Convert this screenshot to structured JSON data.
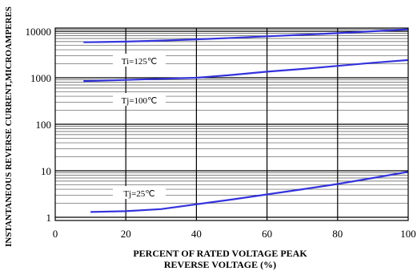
{
  "chart_data": {
    "type": "line",
    "xlabel_line1": "PERCENT OF RATED VOLTAGE PEAK",
    "xlabel_line2": "REVERSE VOLTAGE (%)",
    "ylabel": "INSTANTANEOUS REVERSE CURRENT,MICROAMPERES",
    "xlim": [
      0,
      100
    ],
    "ylim": [
      1,
      10000
    ],
    "yscale": "log",
    "grid": true,
    "x_ticks": [
      "0",
      "20",
      "40",
      "60",
      "80",
      "100"
    ],
    "y_ticks": [
      "1",
      "10",
      "100",
      "1000",
      "10000"
    ],
    "series": [
      {
        "name": "Ti=125℃",
        "color": "#3333dd",
        "x": [
          8,
          20,
          30,
          40,
          50,
          60,
          70,
          80,
          90,
          100
        ],
        "y": [
          5800,
          6000,
          6300,
          6700,
          7200,
          7800,
          8400,
          9100,
          10000,
          11000
        ]
      },
      {
        "name": "Tj=100℃",
        "color": "#3333dd",
        "x": [
          8,
          20,
          30,
          40,
          50,
          60,
          70,
          80,
          90,
          100
        ],
        "y": [
          850,
          900,
          950,
          1000,
          1150,
          1350,
          1550,
          1800,
          2100,
          2400
        ]
      },
      {
        "name": "Tj=25℃",
        "color": "#3333dd",
        "x": [
          10,
          20,
          30,
          40,
          50,
          60,
          70,
          80,
          90,
          100
        ],
        "y": [
          1.3,
          1.35,
          1.5,
          1.9,
          2.4,
          3.1,
          4.0,
          5.2,
          7.0,
          9.5
        ]
      }
    ]
  }
}
